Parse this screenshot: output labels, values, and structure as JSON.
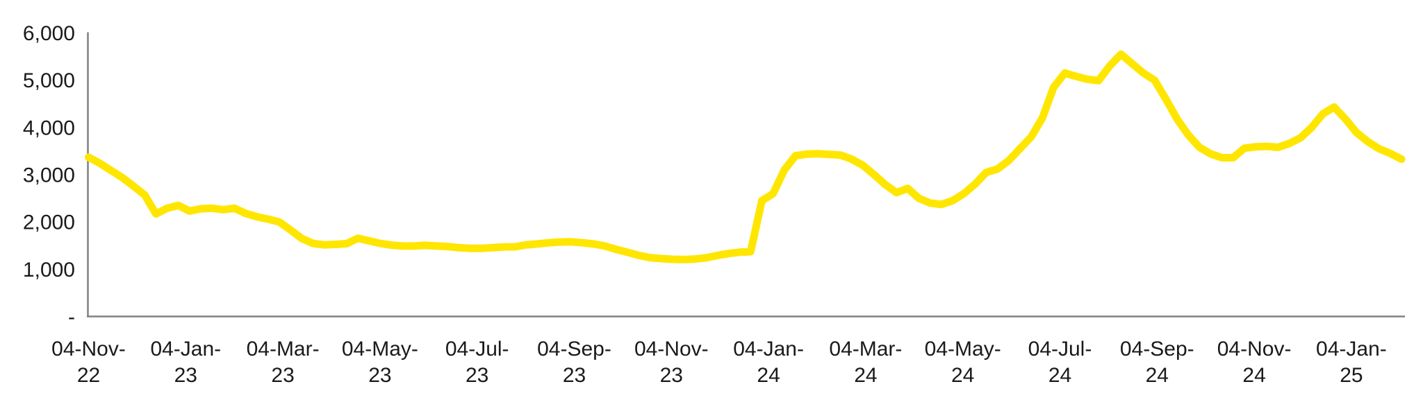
{
  "chart_data": {
    "type": "line",
    "title": "",
    "xlabel": "",
    "ylabel": "",
    "ylim": [
      0,
      6000
    ],
    "grid": "off",
    "legend": "none",
    "line_color": "#FFE600",
    "axis_color": "#808080",
    "text_color": "#1a1a1a",
    "y_ticks": [
      {
        "label": "6,000",
        "value": 6000
      },
      {
        "label": "5,000",
        "value": 5000
      },
      {
        "label": "4,000",
        "value": 4000
      },
      {
        "label": "3,000",
        "value": 3000
      },
      {
        "label": "2,000",
        "value": 2000
      },
      {
        "label": "1,000",
        "value": 1000
      },
      {
        "label": "-",
        "value": 0
      }
    ],
    "x_tick_labels": [
      "04-Nov-22",
      "04-Jan-23",
      "04-Mar-23",
      "04-May-23",
      "04-Jul-23",
      "04-Sep-23",
      "04-Nov-23",
      "04-Jan-24",
      "04-Mar-24",
      "04-May-24",
      "04-Jul-24",
      "04-Sep-24",
      "04-Nov-24",
      "04-Jan-25"
    ],
    "series": [
      {
        "name": "",
        "color": "#FFE600",
        "x": [
          "04-Nov-22",
          "11-Nov-22",
          "18-Nov-22",
          "25-Nov-22",
          "02-Dec-22",
          "09-Dec-22",
          "16-Dec-22",
          "23-Dec-22",
          "30-Dec-22",
          "06-Jan-23",
          "13-Jan-23",
          "20-Jan-23",
          "27-Jan-23",
          "03-Feb-23",
          "10-Feb-23",
          "17-Feb-23",
          "24-Feb-23",
          "03-Mar-23",
          "10-Mar-23",
          "17-Mar-23",
          "24-Mar-23",
          "31-Mar-23",
          "07-Apr-23",
          "14-Apr-23",
          "21-Apr-23",
          "28-Apr-23",
          "05-May-23",
          "12-May-23",
          "19-May-23",
          "26-May-23",
          "02-Jun-23",
          "09-Jun-23",
          "16-Jun-23",
          "23-Jun-23",
          "30-Jun-23",
          "07-Jul-23",
          "14-Jul-23",
          "21-Jul-23",
          "28-Jul-23",
          "04-Aug-23",
          "11-Aug-23",
          "18-Aug-23",
          "25-Aug-23",
          "01-Sep-23",
          "08-Sep-23",
          "15-Sep-23",
          "22-Sep-23",
          "29-Sep-23",
          "06-Oct-23",
          "13-Oct-23",
          "20-Oct-23",
          "27-Oct-23",
          "03-Nov-23",
          "10-Nov-23",
          "17-Nov-23",
          "24-Nov-23",
          "01-Dec-23",
          "08-Dec-23",
          "15-Dec-23",
          "22-Dec-23",
          "29-Dec-23",
          "05-Jan-24",
          "12-Jan-24",
          "19-Jan-24",
          "26-Jan-24",
          "02-Feb-24",
          "09-Feb-24",
          "16-Feb-24",
          "23-Feb-24",
          "01-Mar-24",
          "08-Mar-24",
          "15-Mar-24",
          "22-Mar-24",
          "29-Mar-24",
          "05-Apr-24",
          "12-Apr-24",
          "19-Apr-24",
          "26-Apr-24",
          "03-May-24",
          "10-May-24",
          "17-May-24",
          "24-May-24",
          "31-May-24",
          "07-Jun-24",
          "14-Jun-24",
          "21-Jun-24",
          "28-Jun-24",
          "05-Jul-24",
          "12-Jul-24",
          "19-Jul-24",
          "26-Jul-24",
          "02-Aug-24",
          "09-Aug-24",
          "16-Aug-24",
          "23-Aug-24",
          "30-Aug-24",
          "06-Sep-24",
          "13-Sep-24",
          "20-Sep-24",
          "27-Sep-24",
          "04-Oct-24",
          "11-Oct-24",
          "18-Oct-24",
          "25-Oct-24",
          "01-Nov-24",
          "08-Nov-24",
          "15-Nov-24",
          "22-Nov-24",
          "29-Nov-24",
          "06-Dec-24",
          "13-Dec-24",
          "20-Dec-24",
          "27-Dec-24",
          "03-Jan-25",
          "10-Jan-25",
          "17-Jan-25",
          "24-Jan-25",
          "31-Jan-25"
        ],
        "values": [
          3370,
          3240,
          3090,
          2940,
          2760,
          2570,
          2170,
          2290,
          2350,
          2230,
          2280,
          2290,
          2260,
          2290,
          2180,
          2110,
          2060,
          2000,
          1830,
          1650,
          1545,
          1515,
          1525,
          1540,
          1655,
          1600,
          1545,
          1510,
          1490,
          1490,
          1505,
          1490,
          1480,
          1455,
          1440,
          1440,
          1455,
          1470,
          1475,
          1515,
          1535,
          1560,
          1575,
          1580,
          1560,
          1535,
          1490,
          1420,
          1360,
          1295,
          1245,
          1225,
          1210,
          1205,
          1215,
          1240,
          1290,
          1330,
          1360,
          1370,
          2450,
          2600,
          3100,
          3400,
          3435,
          3445,
          3430,
          3415,
          3330,
          3200,
          3000,
          2790,
          2620,
          2710,
          2500,
          2400,
          2370,
          2450,
          2600,
          2800,
          3050,
          3120,
          3300,
          3550,
          3800,
          4200,
          4850,
          5150,
          5080,
          5020,
          4990,
          5300,
          5550,
          5350,
          5150,
          5000,
          4600,
          4180,
          3840,
          3580,
          3440,
          3360,
          3360,
          3560,
          3590,
          3600,
          3580,
          3660,
          3780,
          4000,
          4290,
          4430,
          4180,
          3890,
          3700,
          3550,
          3450,
          3330
        ]
      }
    ]
  }
}
